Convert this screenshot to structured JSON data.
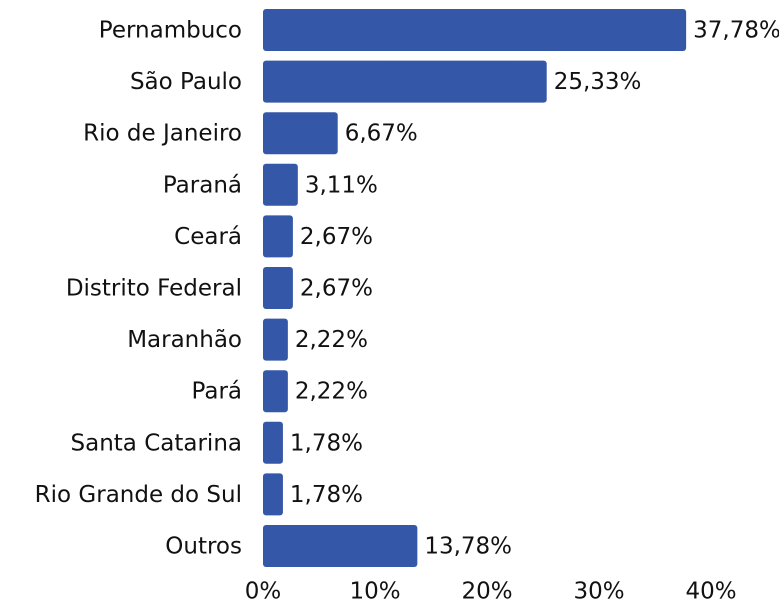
{
  "chart_data": {
    "type": "hbar",
    "categories": [
      "Pernambuco",
      "São Paulo",
      "Rio de Janeiro",
      "Paraná",
      "Ceará",
      "Distrito Federal",
      "Maranhão",
      "Pará",
      "Santa Catarina",
      "Rio Grande do Sul",
      "Outros"
    ],
    "values": [
      37.78,
      25.33,
      6.67,
      3.11,
      2.67,
      2.67,
      2.22,
      2.22,
      1.78,
      1.78,
      13.78
    ],
    "value_labels": [
      "37,78%",
      "25,33%",
      "6,67%",
      "3,11%",
      "2,67%",
      "2,67%",
      "2,22%",
      "2,22%",
      "1,78%",
      "1,78%",
      "13,78%"
    ],
    "color": "#3557a8",
    "xlim": [
      0,
      40
    ],
    "xticks": [
      {
        "value": 0,
        "label": "0%"
      },
      {
        "value": 10,
        "label": "10%"
      },
      {
        "value": 20,
        "label": "20%"
      },
      {
        "value": 30,
        "label": "30%"
      },
      {
        "value": 40,
        "label": "40%"
      }
    ]
  }
}
